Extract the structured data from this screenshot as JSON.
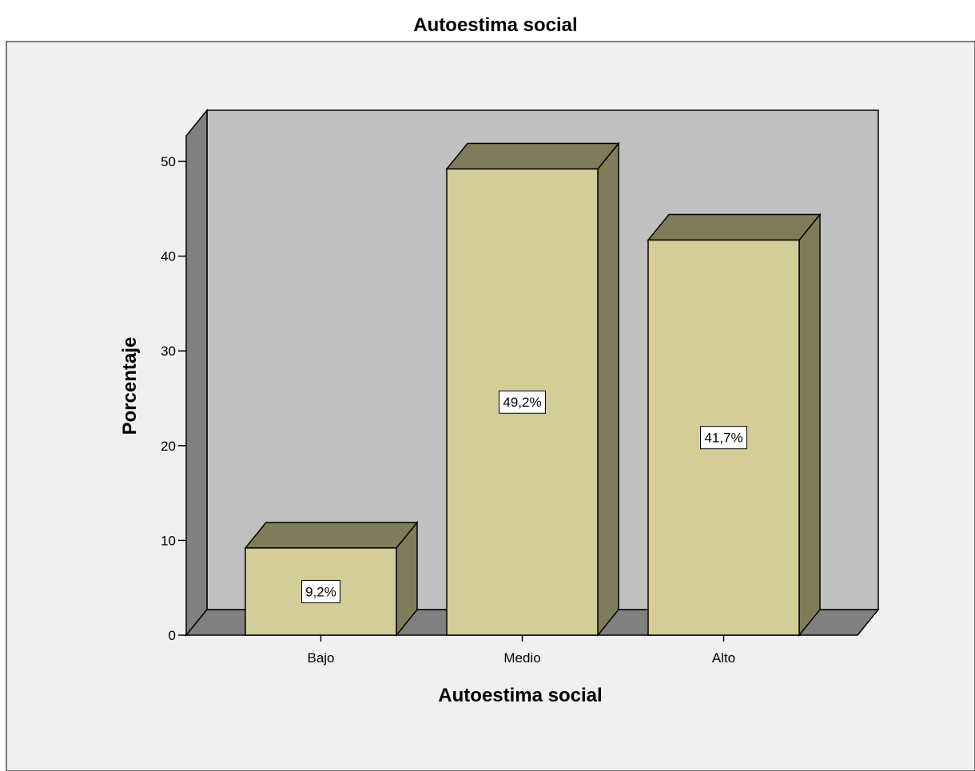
{
  "chart_data": {
    "type": "bar",
    "title": "Autoestima social",
    "xlabel": "Autoestima social",
    "ylabel": "Porcentaje",
    "categories": [
      "Bajo",
      "Medio",
      "Alto"
    ],
    "values": [
      9.2,
      49.2,
      41.7
    ],
    "data_labels": [
      "9,2%",
      "49,2%",
      "41,7%"
    ],
    "ylim": [
      0,
      50
    ],
    "yticks": [
      "0",
      "10",
      "20",
      "30",
      "40",
      "50"
    ],
    "style": "3d",
    "grid": false,
    "legend": "none",
    "colors": {
      "bar_front": "#d4cd98",
      "bar_top": "#807c5a",
      "bar_side": "#807c5a",
      "back_wall": "#c0c0c0",
      "side_wall": "#808080",
      "floor": "#808080",
      "outer_background": "#f0f0f0",
      "frame": "#000000"
    }
  }
}
